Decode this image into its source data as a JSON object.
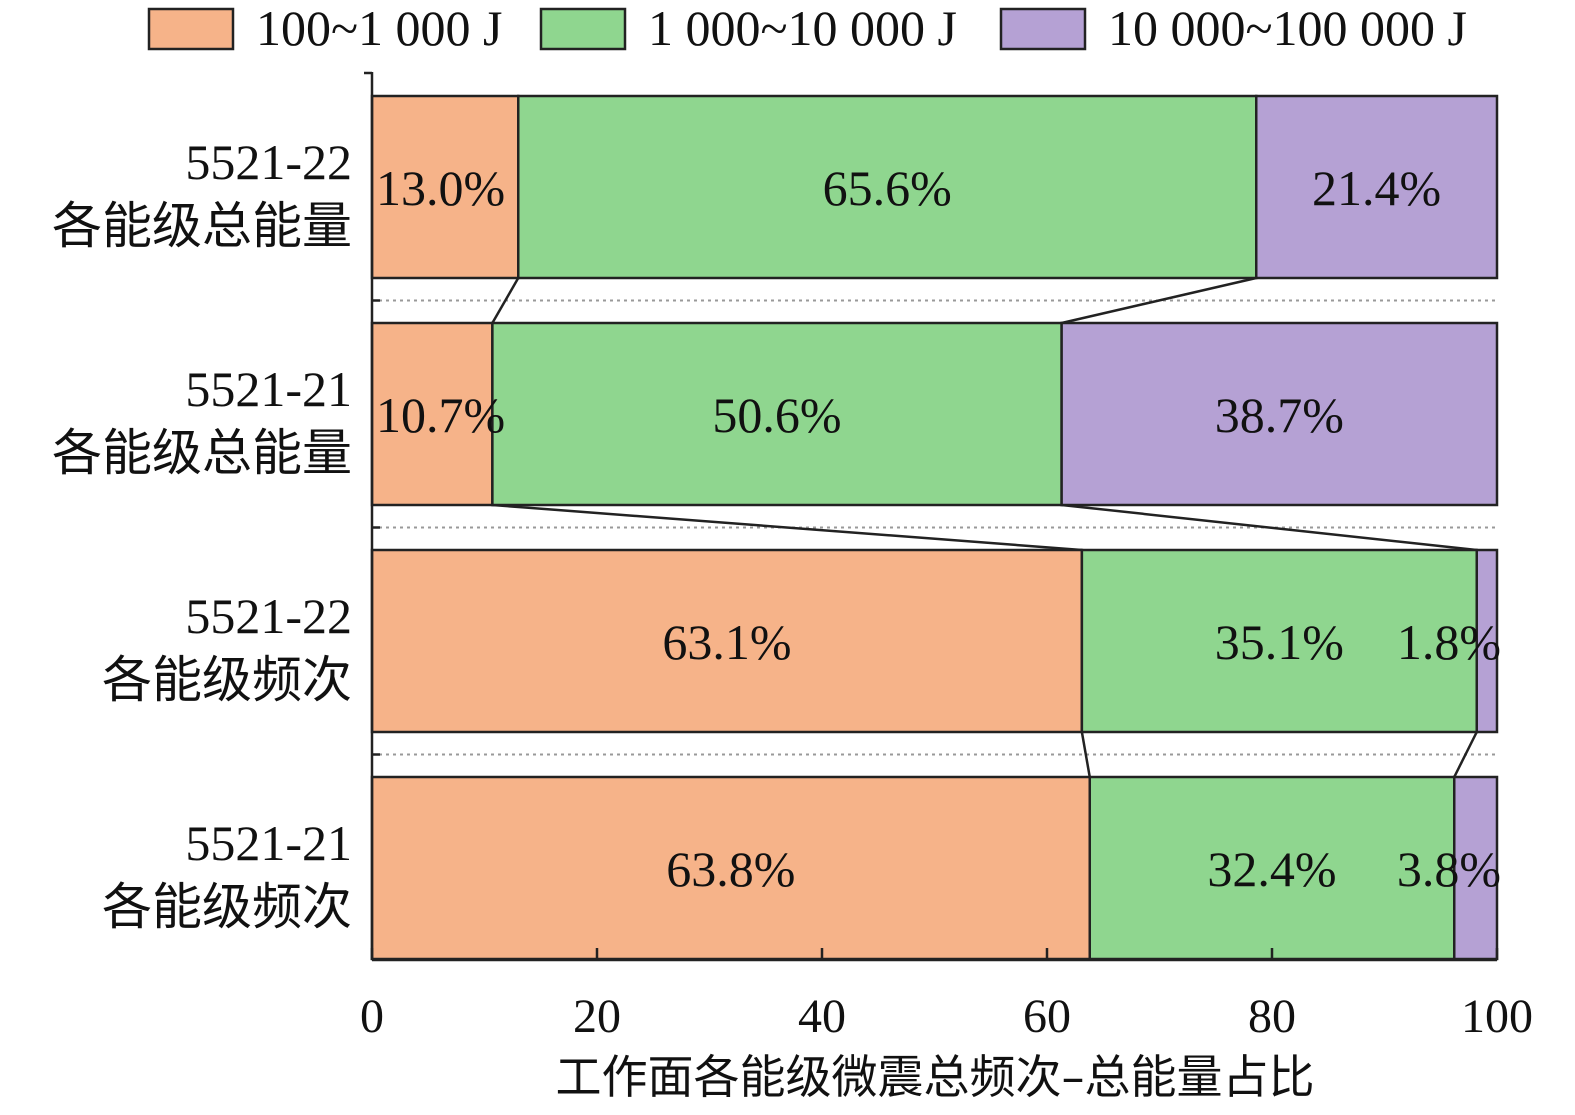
{
  "chart_data": {
    "type": "bar",
    "orientation": "horizontal",
    "stacked": true,
    "legend_position": "top",
    "xlabel": "工作面各能级微震总频次–总能量占比",
    "ylabel": "",
    "xlim": [
      0,
      100
    ],
    "x_ticks": [
      "0",
      "20",
      "40",
      "60",
      "80",
      "100"
    ],
    "categories": [
      {
        "line1": "5521-22",
        "line2": "各能级总能量"
      },
      {
        "line1": "5521-21",
        "line2": "各能级总能量"
      },
      {
        "line1": "5521-22",
        "line2": "各能级频次"
      },
      {
        "line1": "5521-21",
        "line2": "各能级频次"
      }
    ],
    "series": [
      {
        "name": "100~1 000 J",
        "color": "#F6B389",
        "values": [
          13.0,
          10.7,
          63.1,
          63.8
        ],
        "labels": [
          "13.0%",
          "10.7%",
          "63.1%",
          "63.8%"
        ]
      },
      {
        "name": "1 000~10 000 J",
        "color": "#8FD68F",
        "values": [
          65.6,
          50.6,
          35.1,
          32.4
        ],
        "labels": [
          "65.6%",
          "50.6%",
          "35.1%",
          "32.4%"
        ]
      },
      {
        "name": "10 000~100 000 J",
        "color": "#B5A1D4",
        "values": [
          21.4,
          38.7,
          1.8,
          3.8
        ],
        "labels": [
          "21.4%",
          "38.7%",
          "1.8%",
          "3.8%"
        ]
      }
    ],
    "grid": false,
    "connector_lines": true
  }
}
